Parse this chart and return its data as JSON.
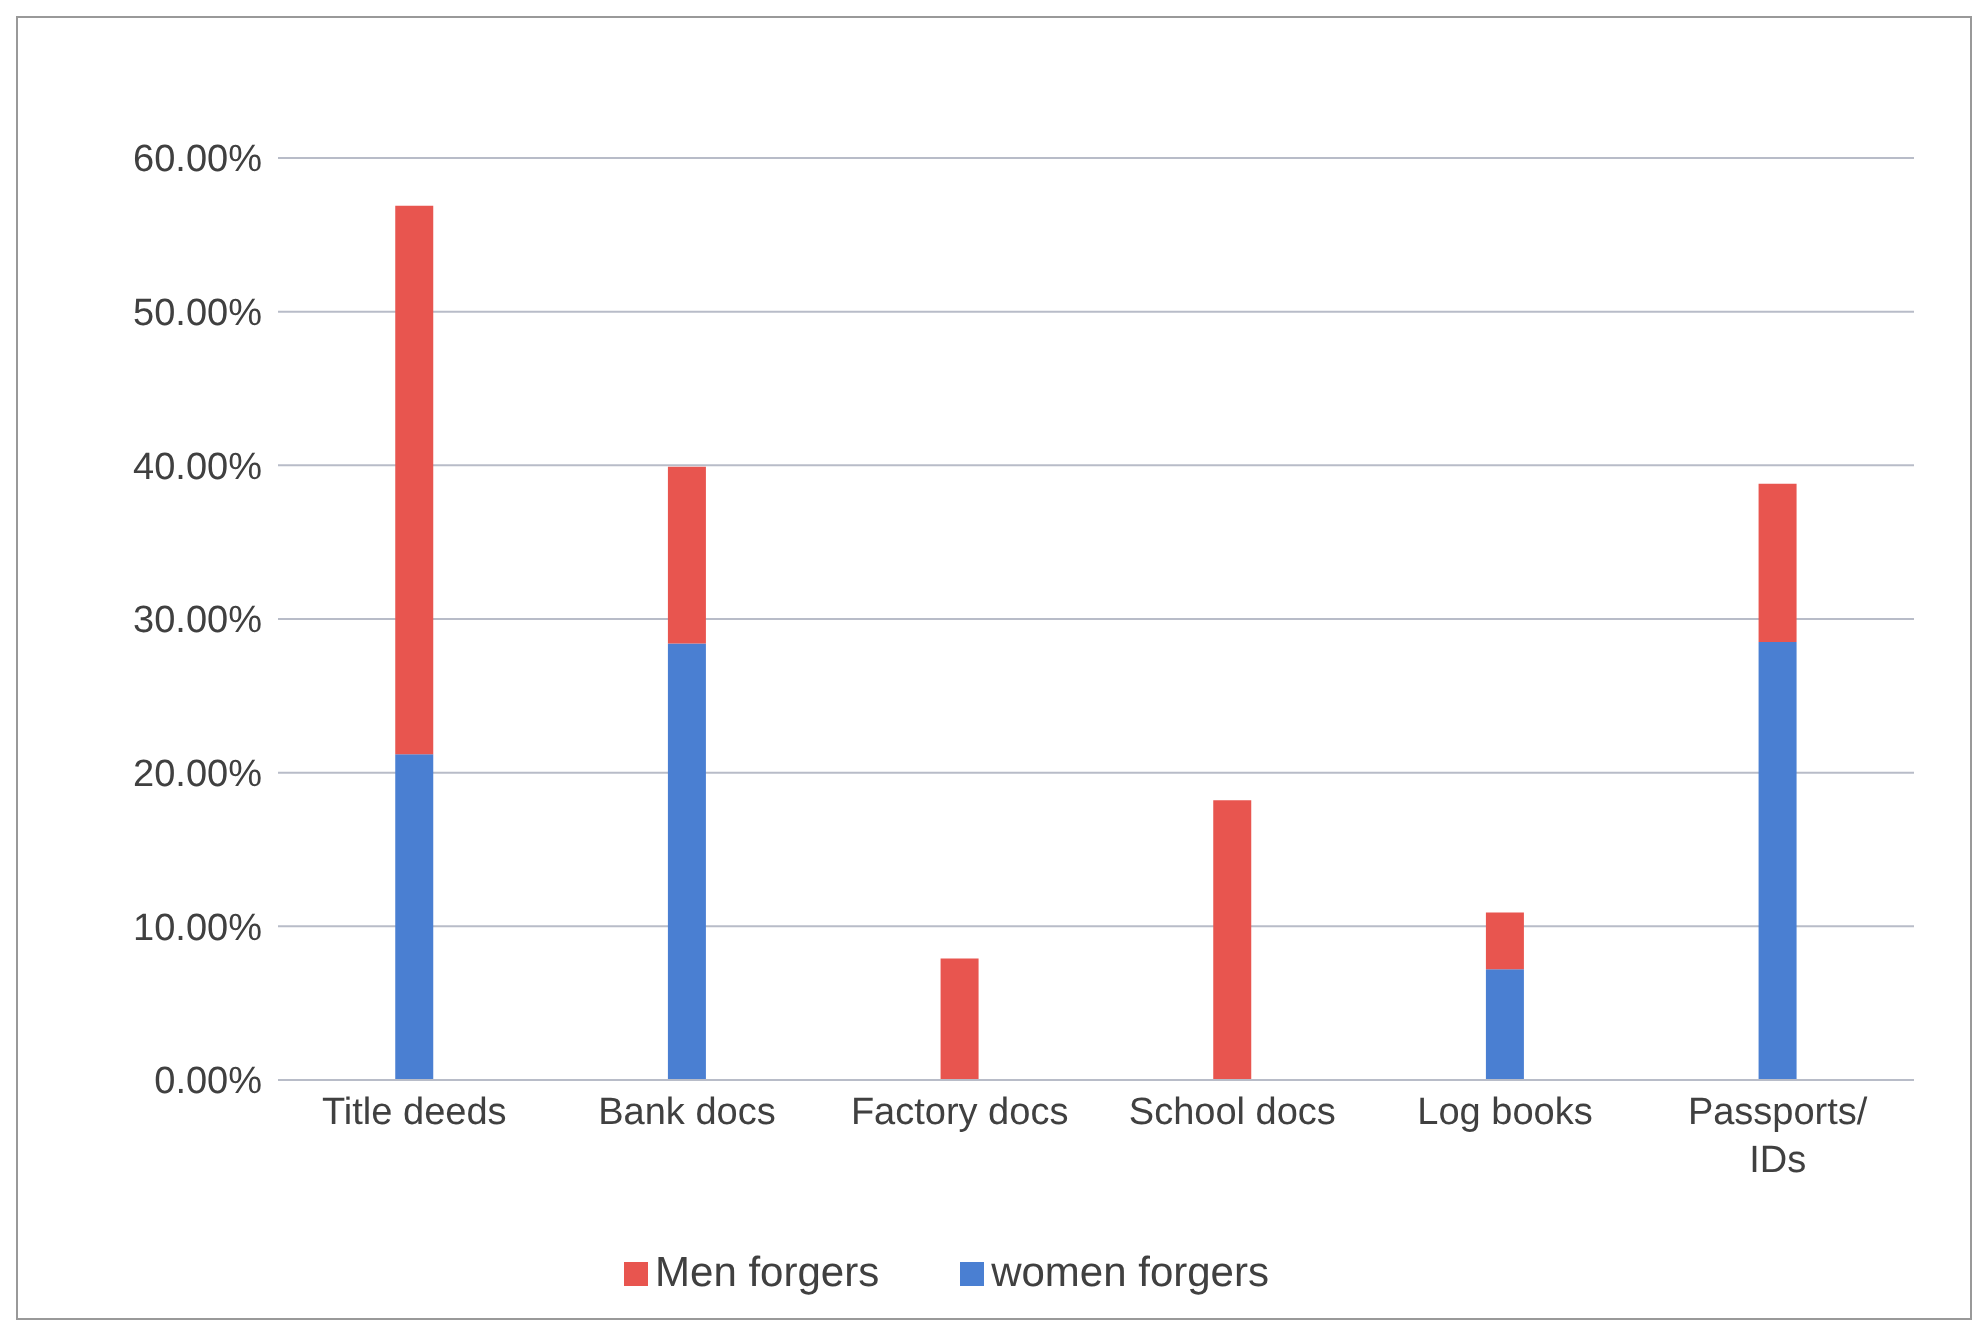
{
  "chart_data": {
    "type": "bar",
    "stacked": true,
    "categories": [
      "Title deeds",
      "Bank docs",
      "Factory docs",
      "School docs",
      "Log books",
      "Passports/ IDs"
    ],
    "series": [
      {
        "name": "women forgers",
        "color": "#4a7fd2",
        "values": [
          21.2,
          28.4,
          0,
          0,
          7.2,
          28.5
        ]
      },
      {
        "name": "Men forgers",
        "color": "#e8554f",
        "values": [
          35.7,
          11.5,
          7.9,
          18.2,
          3.7,
          10.3
        ]
      }
    ],
    "ylim": [
      0,
      60
    ],
    "yticks": [
      {
        "value": 0,
        "label": "0.00%"
      },
      {
        "value": 10,
        "label": "10.00%"
      },
      {
        "value": 20,
        "label": "20.00%"
      },
      {
        "value": 30,
        "label": "30.00%"
      },
      {
        "value": 40,
        "label": "40.00%"
      },
      {
        "value": 50,
        "label": "50.00%"
      },
      {
        "value": 60,
        "label": "60.00%"
      }
    ],
    "grid": "y",
    "legend": "bottom"
  }
}
